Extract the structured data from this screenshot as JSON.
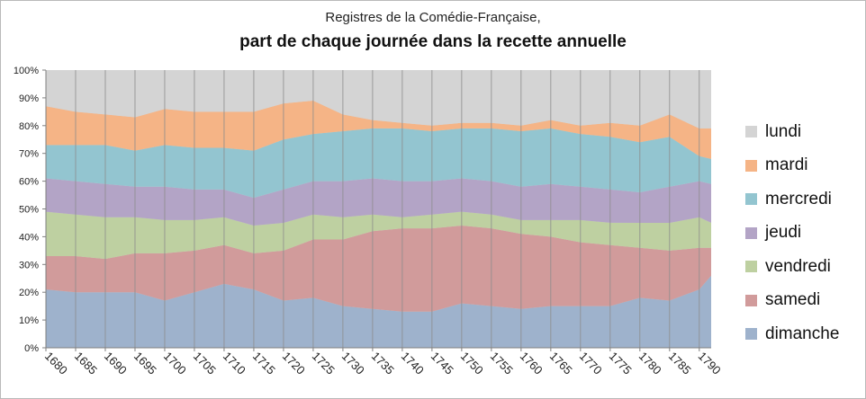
{
  "chart_data": {
    "type": "area",
    "stacking": "percent",
    "title": "Registres de la Comédie-Française,",
    "subtitle": "part de chaque journée dans la recette annuelle",
    "ylim": [
      0,
      1
    ],
    "y_ticks": [
      "0%",
      "10%",
      "20%",
      "30%",
      "40%",
      "50%",
      "60%",
      "70%",
      "80%",
      "90%",
      "100%"
    ],
    "xlim": [
      1680,
      1792
    ],
    "x_ticks": [
      "1680",
      "1685",
      "1690",
      "1695",
      "1700",
      "1705",
      "1710",
      "1715",
      "1720",
      "1725",
      "1730",
      "1735",
      "1740",
      "1745",
      "1750",
      "1755",
      "1760",
      "1765",
      "1770",
      "1775",
      "1780",
      "1785",
      "1790"
    ],
    "grid": "vertical",
    "legend_position": "right",
    "x": [
      1680,
      1685,
      1690,
      1695,
      1700,
      1705,
      1710,
      1715,
      1720,
      1725,
      1730,
      1735,
      1740,
      1745,
      1750,
      1755,
      1760,
      1765,
      1770,
      1775,
      1780,
      1785,
      1790,
      1792
    ],
    "series": [
      {
        "name": "dimanche",
        "color": "#9eb2cc",
        "values": [
          0.21,
          0.2,
          0.2,
          0.2,
          0.17,
          0.2,
          0.23,
          0.21,
          0.17,
          0.18,
          0.15,
          0.14,
          0.13,
          0.13,
          0.16,
          0.15,
          0.14,
          0.15,
          0.15,
          0.15,
          0.18,
          0.17,
          0.21,
          0.26
        ]
      },
      {
        "name": "samedi",
        "color": "#d19b9b",
        "values": [
          0.12,
          0.13,
          0.12,
          0.14,
          0.17,
          0.15,
          0.14,
          0.13,
          0.18,
          0.21,
          0.24,
          0.28,
          0.3,
          0.3,
          0.28,
          0.28,
          0.27,
          0.25,
          0.23,
          0.22,
          0.18,
          0.18,
          0.15,
          0.1
        ]
      },
      {
        "name": "vendredi",
        "color": "#bed0a1",
        "values": [
          0.16,
          0.15,
          0.15,
          0.13,
          0.12,
          0.11,
          0.1,
          0.1,
          0.1,
          0.09,
          0.08,
          0.06,
          0.04,
          0.05,
          0.05,
          0.05,
          0.05,
          0.06,
          0.08,
          0.08,
          0.09,
          0.1,
          0.11,
          0.09
        ]
      },
      {
        "name": "jeudi",
        "color": "#b3a4c6",
        "values": [
          0.12,
          0.12,
          0.12,
          0.11,
          0.12,
          0.11,
          0.1,
          0.1,
          0.12,
          0.12,
          0.13,
          0.13,
          0.13,
          0.12,
          0.12,
          0.12,
          0.12,
          0.13,
          0.12,
          0.12,
          0.11,
          0.13,
          0.13,
          0.14
        ]
      },
      {
        "name": "mercredi",
        "color": "#93c5d0",
        "values": [
          0.12,
          0.13,
          0.14,
          0.13,
          0.15,
          0.15,
          0.15,
          0.17,
          0.18,
          0.17,
          0.18,
          0.18,
          0.19,
          0.18,
          0.18,
          0.19,
          0.2,
          0.2,
          0.19,
          0.19,
          0.18,
          0.18,
          0.09,
          0.09
        ]
      },
      {
        "name": "mardi",
        "color": "#f5b486",
        "values": [
          0.14,
          0.12,
          0.11,
          0.12,
          0.13,
          0.13,
          0.13,
          0.14,
          0.13,
          0.12,
          0.06,
          0.03,
          0.02,
          0.02,
          0.02,
          0.02,
          0.02,
          0.03,
          0.03,
          0.05,
          0.06,
          0.08,
          0.1,
          0.11
        ]
      },
      {
        "name": "lundi",
        "color": "#d4d4d4",
        "values": [
          0.13,
          0.15,
          0.16,
          0.17,
          0.14,
          0.15,
          0.15,
          0.15,
          0.12,
          0.11,
          0.16,
          0.18,
          0.19,
          0.2,
          0.19,
          0.19,
          0.2,
          0.18,
          0.2,
          0.19,
          0.2,
          0.16,
          0.21,
          0.21
        ]
      }
    ]
  }
}
